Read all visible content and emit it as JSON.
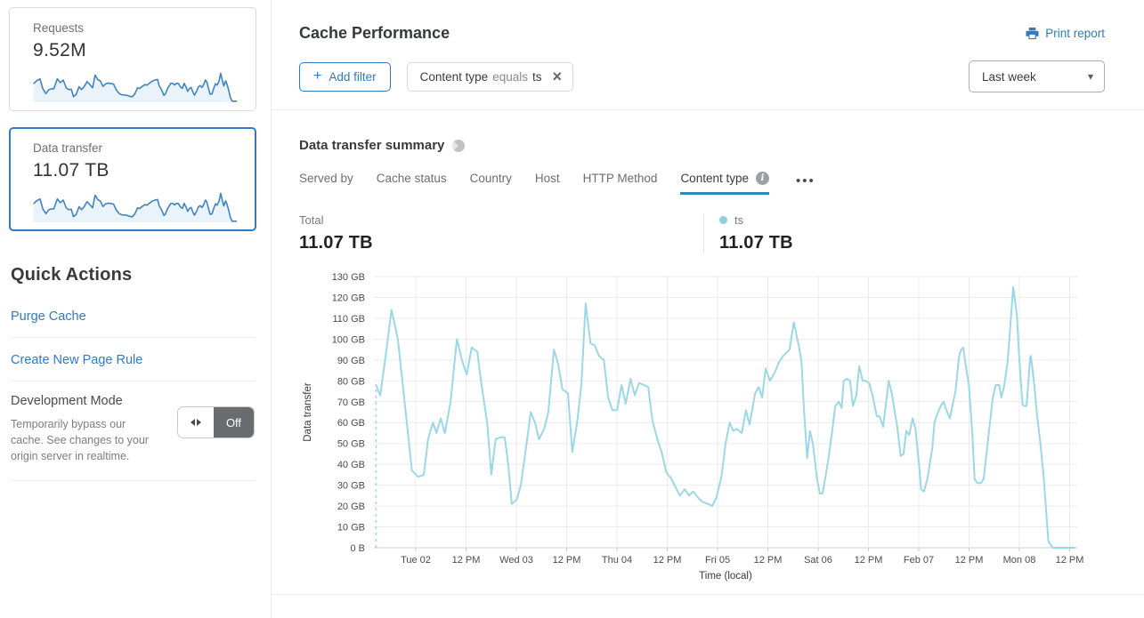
{
  "sidebar": {
    "cards": [
      {
        "label": "Requests",
        "value": "9.52M",
        "selected": false
      },
      {
        "label": "Data transfer",
        "value": "11.07 TB",
        "selected": true
      }
    ],
    "quick_actions": {
      "title": "Quick Actions",
      "links": [
        {
          "label": "Purge Cache"
        },
        {
          "label": "Create New Page Rule"
        }
      ],
      "dev_mode": {
        "title": "Development Mode",
        "description": "Temporarily bypass our cache. See changes to your origin server in realtime.",
        "toggle_state": "Off"
      }
    }
  },
  "header": {
    "title": "Cache Performance",
    "print_label": "Print report"
  },
  "filters": {
    "add_label": "Add filter",
    "chip": {
      "field": "Content type",
      "operator": "equals",
      "value": "ts"
    },
    "time_range": "Last week"
  },
  "summary": {
    "title": "Data transfer summary",
    "tabs": [
      {
        "label": "Served by",
        "active": false
      },
      {
        "label": "Cache status",
        "active": false
      },
      {
        "label": "Country",
        "active": false
      },
      {
        "label": "Host",
        "active": false
      },
      {
        "label": "HTTP Method",
        "active": false
      },
      {
        "label": "Content type",
        "active": true,
        "info": true
      }
    ],
    "total": {
      "label": "Total",
      "value": "11.07 TB"
    },
    "legend": {
      "name": "ts",
      "value": "11.07 TB"
    }
  },
  "icons": {
    "plus": "+",
    "close": "×",
    "caret": "▾",
    "more": "•••",
    "info": "i"
  },
  "colors": {
    "accent_blue": "#2f7bbf",
    "tab_underline": "#2e8bb0",
    "chart_line": "#9bd8e6",
    "legend_dot": "#8fd0e0",
    "sparkline_stroke": "#3f83c4",
    "sparkline_fill": "#eaf2fa",
    "toggle_off_bg": "#696c6f"
  },
  "chart_data": {
    "type": "line",
    "title": "Data transfer summary — Content type equals ts",
    "xlabel": "Time (local)",
    "ylabel": "Data transfer",
    "unit": "GB",
    "y_max_gb": 130,
    "grid": true,
    "y_ticks": [
      "0 B",
      "10 GB",
      "20 GB",
      "30 GB",
      "40 GB",
      "50 GB",
      "60 GB",
      "70 GB",
      "80 GB",
      "90 GB",
      "100 GB",
      "110 GB",
      "120 GB",
      "130 GB"
    ],
    "x_ticks": [
      "Tue 02",
      "12 PM",
      "Wed 03",
      "12 PM",
      "Thu 04",
      "12 PM",
      "Fri 05",
      "12 PM",
      "Sat 06",
      "12 PM",
      "Feb 07",
      "12 PM",
      "Mon 08",
      "12 PM"
    ],
    "series": [
      {
        "name": "ts",
        "color": "#9bd8e6",
        "total": "11.07 TB",
        "points": [
          [
            0.003,
            78
          ],
          [
            0.009,
            73
          ],
          [
            0.016,
            90
          ],
          [
            0.025,
            114
          ],
          [
            0.034,
            100
          ],
          [
            0.042,
            75
          ],
          [
            0.048,
            56
          ],
          [
            0.054,
            37
          ],
          [
            0.063,
            34
          ],
          [
            0.071,
            35
          ],
          [
            0.077,
            52
          ],
          [
            0.084,
            60
          ],
          [
            0.089,
            55
          ],
          [
            0.095,
            62
          ],
          [
            0.101,
            55
          ],
          [
            0.109,
            70
          ],
          [
            0.118,
            100
          ],
          [
            0.125,
            90
          ],
          [
            0.132,
            83
          ],
          [
            0.139,
            96
          ],
          [
            0.147,
            94
          ],
          [
            0.153,
            78
          ],
          [
            0.161,
            60
          ],
          [
            0.167,
            35
          ],
          [
            0.173,
            52
          ],
          [
            0.18,
            53
          ],
          [
            0.186,
            53
          ],
          [
            0.191,
            40
          ],
          [
            0.196,
            21
          ],
          [
            0.203,
            23
          ],
          [
            0.209,
            30
          ],
          [
            0.215,
            45
          ],
          [
            0.223,
            65
          ],
          [
            0.229,
            60
          ],
          [
            0.235,
            52
          ],
          [
            0.242,
            57
          ],
          [
            0.248,
            65
          ],
          [
            0.256,
            95
          ],
          [
            0.262,
            88
          ],
          [
            0.268,
            76
          ],
          [
            0.276,
            74
          ],
          [
            0.282,
            46
          ],
          [
            0.289,
            60
          ],
          [
            0.295,
            78
          ],
          [
            0.301,
            117
          ],
          [
            0.308,
            98
          ],
          [
            0.314,
            97
          ],
          [
            0.32,
            92
          ],
          [
            0.327,
            90
          ],
          [
            0.333,
            72
          ],
          [
            0.339,
            66
          ],
          [
            0.346,
            66
          ],
          [
            0.352,
            78
          ],
          [
            0.358,
            69
          ],
          [
            0.365,
            81
          ],
          [
            0.371,
            73
          ],
          [
            0.377,
            79
          ],
          [
            0.384,
            78
          ],
          [
            0.39,
            77
          ],
          [
            0.396,
            61
          ],
          [
            0.403,
            52
          ],
          [
            0.409,
            46
          ],
          [
            0.416,
            36
          ],
          [
            0.423,
            33
          ],
          [
            0.429,
            29
          ],
          [
            0.435,
            25
          ],
          [
            0.442,
            28
          ],
          [
            0.448,
            25
          ],
          [
            0.454,
            27
          ],
          [
            0.461,
            24
          ],
          [
            0.467,
            22
          ],
          [
            0.475,
            21
          ],
          [
            0.481,
            20
          ],
          [
            0.487,
            24
          ],
          [
            0.494,
            34
          ],
          [
            0.5,
            50
          ],
          [
            0.506,
            60
          ],
          [
            0.511,
            56
          ],
          [
            0.516,
            57
          ],
          [
            0.523,
            55
          ],
          [
            0.529,
            66
          ],
          [
            0.534,
            59
          ],
          [
            0.542,
            74
          ],
          [
            0.547,
            77
          ],
          [
            0.552,
            72
          ],
          [
            0.557,
            86
          ],
          [
            0.563,
            80
          ],
          [
            0.57,
            84
          ],
          [
            0.576,
            89
          ],
          [
            0.582,
            92
          ],
          [
            0.591,
            95
          ],
          [
            0.597,
            108
          ],
          [
            0.604,
            97
          ],
          [
            0.608,
            89
          ],
          [
            0.611,
            69
          ],
          [
            0.616,
            43
          ],
          [
            0.62,
            56
          ],
          [
            0.624,
            50
          ],
          [
            0.627,
            42
          ],
          [
            0.63,
            33
          ],
          [
            0.634,
            26
          ],
          [
            0.638,
            26
          ],
          [
            0.642,
            34
          ],
          [
            0.646,
            42
          ],
          [
            0.652,
            57
          ],
          [
            0.656,
            68
          ],
          [
            0.661,
            70
          ],
          [
            0.665,
            67
          ],
          [
            0.668,
            80
          ],
          [
            0.673,
            81
          ],
          [
            0.677,
            80
          ],
          [
            0.681,
            68
          ],
          [
            0.686,
            73
          ],
          [
            0.69,
            87
          ],
          [
            0.695,
            80
          ],
          [
            0.699,
            80
          ],
          [
            0.704,
            79
          ],
          [
            0.709,
            73
          ],
          [
            0.715,
            63
          ],
          [
            0.719,
            63
          ],
          [
            0.724,
            58
          ],
          [
            0.728,
            69
          ],
          [
            0.732,
            80
          ],
          [
            0.737,
            73
          ],
          [
            0.741,
            64
          ],
          [
            0.744,
            58
          ],
          [
            0.749,
            44
          ],
          [
            0.753,
            45
          ],
          [
            0.757,
            56
          ],
          [
            0.761,
            54
          ],
          [
            0.766,
            62
          ],
          [
            0.77,
            57
          ],
          [
            0.775,
            40
          ],
          [
            0.778,
            28
          ],
          [
            0.782,
            27
          ],
          [
            0.787,
            33
          ],
          [
            0.794,
            48
          ],
          [
            0.797,
            60
          ],
          [
            0.801,
            64
          ],
          [
            0.806,
            68
          ],
          [
            0.81,
            70
          ],
          [
            0.815,
            65
          ],
          [
            0.819,
            62
          ],
          [
            0.823,
            69
          ],
          [
            0.827,
            75
          ],
          [
            0.832,
            92
          ],
          [
            0.835,
            95
          ],
          [
            0.838,
            96
          ],
          [
            0.842,
            86
          ],
          [
            0.846,
            78
          ],
          [
            0.851,
            54
          ],
          [
            0.854,
            33
          ],
          [
            0.858,
            31
          ],
          [
            0.863,
            31
          ],
          [
            0.867,
            33
          ],
          [
            0.871,
            45
          ],
          [
            0.876,
            60
          ],
          [
            0.88,
            72
          ],
          [
            0.884,
            78
          ],
          [
            0.889,
            78
          ],
          [
            0.892,
            72
          ],
          [
            0.896,
            77
          ],
          [
            0.901,
            89
          ],
          [
            0.905,
            107
          ],
          [
            0.909,
            125
          ],
          [
            0.914,
            112
          ],
          [
            0.918,
            89
          ],
          [
            0.922,
            69
          ],
          [
            0.924,
            68
          ],
          [
            0.928,
            68
          ],
          [
            0.933,
            91
          ],
          [
            0.934,
            92
          ],
          [
            0.939,
            78
          ],
          [
            0.943,
            63
          ],
          [
            0.947,
            52
          ],
          [
            0.952,
            35
          ],
          [
            0.956,
            17
          ],
          [
            0.959,
            3
          ],
          [
            0.965,
            0
          ],
          [
            0.975,
            0
          ],
          [
            0.987,
            0
          ],
          [
            0.996,
            0
          ]
        ],
        "start_dashed_riser": true
      }
    ]
  }
}
